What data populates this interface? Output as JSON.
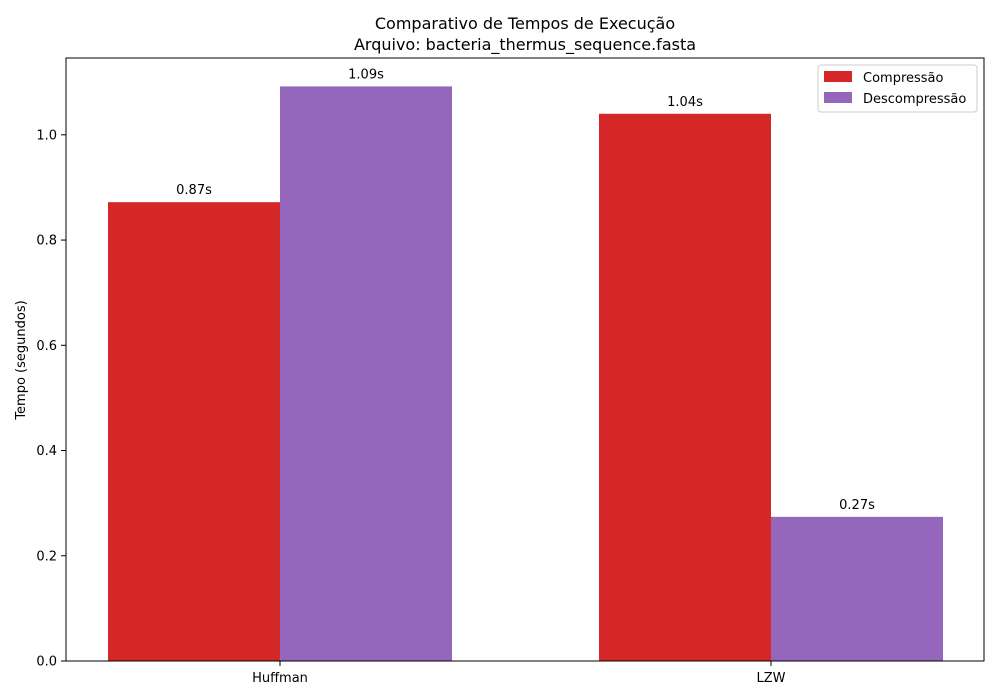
{
  "chart_data": {
    "type": "bar",
    "title": "Comparativo de Tempos de Execução",
    "subtitle": "Arquivo: bacteria_thermus_sequence.fasta",
    "xlabel": "",
    "ylabel": "Tempo (segundos)",
    "categories": [
      "Huffman",
      "LZW"
    ],
    "series": [
      {
        "name": "Compressão",
        "values": [
          0.872,
          1.04
        ],
        "color": "#d62728",
        "labels": [
          "0.87s",
          "1.04s"
        ]
      },
      {
        "name": "Descompressão",
        "values": [
          1.092,
          0.274
        ],
        "color": "#9467bd",
        "labels": [
          "1.09s",
          "0.27s"
        ]
      }
    ],
    "ylim": [
      0,
      1.146
    ],
    "yticks": [
      0.0,
      0.2,
      0.4,
      0.6,
      0.8,
      1.0
    ],
    "ytick_labels": [
      "0.0",
      "0.2",
      "0.4",
      "0.6",
      "0.8",
      "1.0"
    ],
    "grid": false,
    "legend_position": "top-right"
  }
}
